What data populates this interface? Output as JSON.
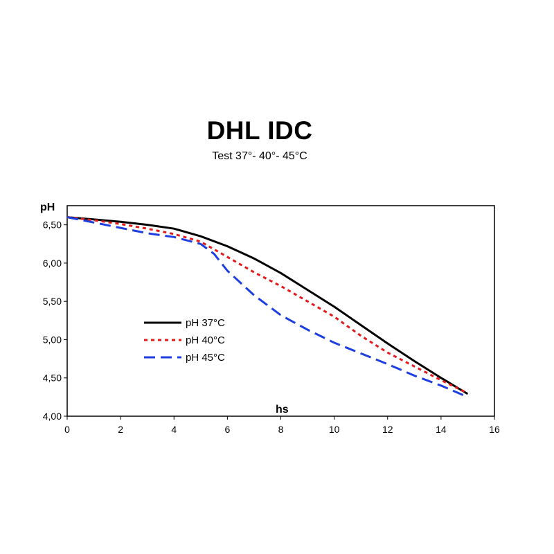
{
  "chart_data": {
    "type": "line",
    "title": "DHL IDC",
    "subtitle": "Test 37°- 40°- 45°C",
    "xlabel": "hs",
    "ylabel": "pH",
    "xlim": [
      0,
      16
    ],
    "ylim": [
      4.0,
      6.75
    ],
    "xticks": [
      "0",
      "2",
      "4",
      "6",
      "8",
      "10",
      "12",
      "14",
      "16"
    ],
    "yticks": [
      "4,00",
      "4,50",
      "5,00",
      "5,50",
      "6,00",
      "6,50"
    ],
    "ytick_values": [
      4.0,
      4.5,
      5.0,
      5.5,
      6.0,
      6.5
    ],
    "xtick_values": [
      0,
      2,
      4,
      6,
      8,
      10,
      12,
      14,
      16
    ],
    "grid": false,
    "legend_position": "left-center",
    "series": [
      {
        "name": "pH 37°C",
        "color": "#000000",
        "style": "solid",
        "x": [
          0,
          1,
          2,
          3,
          4,
          5,
          6,
          7,
          8,
          9,
          10,
          11,
          12,
          13,
          14,
          15
        ],
        "y": [
          6.6,
          6.57,
          6.54,
          6.5,
          6.45,
          6.35,
          6.22,
          6.06,
          5.87,
          5.65,
          5.43,
          5.19,
          4.95,
          4.72,
          4.5,
          4.29
        ]
      },
      {
        "name": "pH 40°C",
        "color": "#e31a1c",
        "style": "dotted",
        "x": [
          0,
          1,
          2,
          3,
          4,
          5,
          6,
          7,
          8,
          9,
          10,
          11,
          12,
          13,
          14,
          15
        ],
        "y": [
          6.6,
          6.56,
          6.51,
          6.45,
          6.38,
          6.28,
          6.08,
          5.88,
          5.7,
          5.5,
          5.3,
          5.05,
          4.83,
          4.65,
          4.47,
          4.3
        ]
      },
      {
        "name": "pH 45°C",
        "color": "#1f3ee0",
        "style": "dashed",
        "x": [
          0,
          1,
          2,
          3,
          4,
          5,
          5.5,
          6,
          7,
          8,
          9,
          10,
          11,
          12,
          13,
          14,
          15
        ],
        "y": [
          6.6,
          6.53,
          6.46,
          6.39,
          6.34,
          6.25,
          6.12,
          5.9,
          5.58,
          5.32,
          5.13,
          4.96,
          4.82,
          4.68,
          4.53,
          4.4,
          4.25
        ]
      }
    ]
  }
}
